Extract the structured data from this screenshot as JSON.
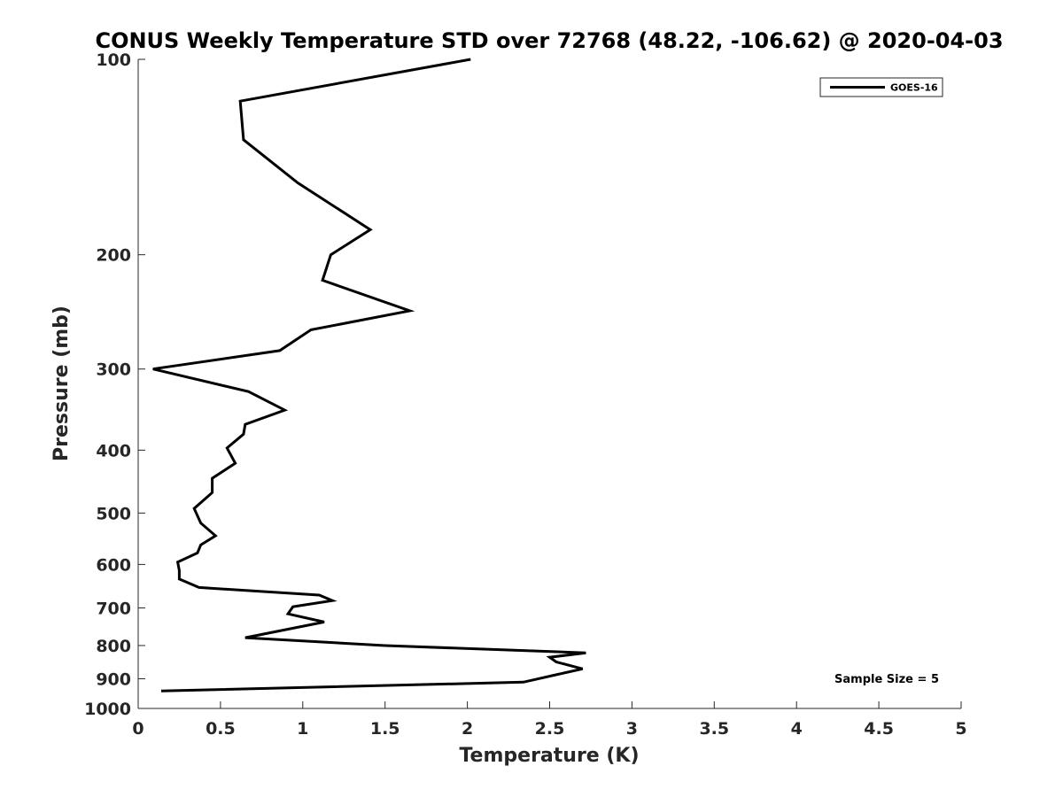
{
  "chart_data": {
    "type": "line",
    "title": "CONUS Weekly Temperature STD over 72768 (48.22, -106.62) @ 2020-04-03",
    "xlabel": "Temperature (K)",
    "ylabel": "Pressure (mb)",
    "xlim": [
      0,
      5
    ],
    "ylim": [
      100,
      1000
    ],
    "y_scale": "log",
    "y_reversed": true,
    "x_ticks": [
      {
        "value": 0,
        "label": "0"
      },
      {
        "value": 0.5,
        "label": "0.5"
      },
      {
        "value": 1,
        "label": "1"
      },
      {
        "value": 1.5,
        "label": "1.5"
      },
      {
        "value": 2,
        "label": "2"
      },
      {
        "value": 2.5,
        "label": "2.5"
      },
      {
        "value": 3,
        "label": "3"
      },
      {
        "value": 3.5,
        "label": "3.5"
      },
      {
        "value": 4,
        "label": "4"
      },
      {
        "value": 4.5,
        "label": "4.5"
      },
      {
        "value": 5,
        "label": "5"
      }
    ],
    "y_ticks": [
      {
        "value": 100,
        "label": "100"
      },
      {
        "value": 200,
        "label": "200"
      },
      {
        "value": 300,
        "label": "300"
      },
      {
        "value": 400,
        "label": "400"
      },
      {
        "value": 500,
        "label": "500"
      },
      {
        "value": 600,
        "label": "600"
      },
      {
        "value": 700,
        "label": "700"
      },
      {
        "value": 800,
        "label": "800"
      },
      {
        "value": 900,
        "label": "900"
      },
      {
        "value": 1000,
        "label": "1000"
      }
    ],
    "grid": false,
    "legend_position": "top-right",
    "series": [
      {
        "name": "GOES-16",
        "color": "#000000",
        "x": [
          2.02,
          0.62,
          0.64,
          0.97,
          1.41,
          1.17,
          1.12,
          1.65,
          1.05,
          0.86,
          0.09,
          0.67,
          0.89,
          0.65,
          0.64,
          0.54,
          0.59,
          0.45,
          0.45,
          0.34,
          0.38,
          0.47,
          0.38,
          0.36,
          0.24,
          0.25,
          0.25,
          0.37,
          1.1,
          1.18,
          0.94,
          0.91,
          1.13,
          0.65,
          1.5,
          2.72,
          2.5,
          2.54,
          2.7,
          2.55,
          2.34,
          0.14
        ],
        "y": [
          100,
          116,
          133,
          155,
          183,
          200,
          219,
          244,
          261,
          281,
          300,
          325,
          347,
          365,
          378,
          397,
          419,
          442,
          465,
          492,
          518,
          542,
          560,
          576,
          595,
          613,
          632,
          651,
          669,
          682,
          697,
          715,
          736,
          778,
          800,
          821,
          834,
          848,
          869,
          886,
          911,
          940
        ]
      }
    ],
    "annotations": [
      {
        "text": "Sample Size = 5",
        "position": "bottom-right"
      }
    ]
  }
}
